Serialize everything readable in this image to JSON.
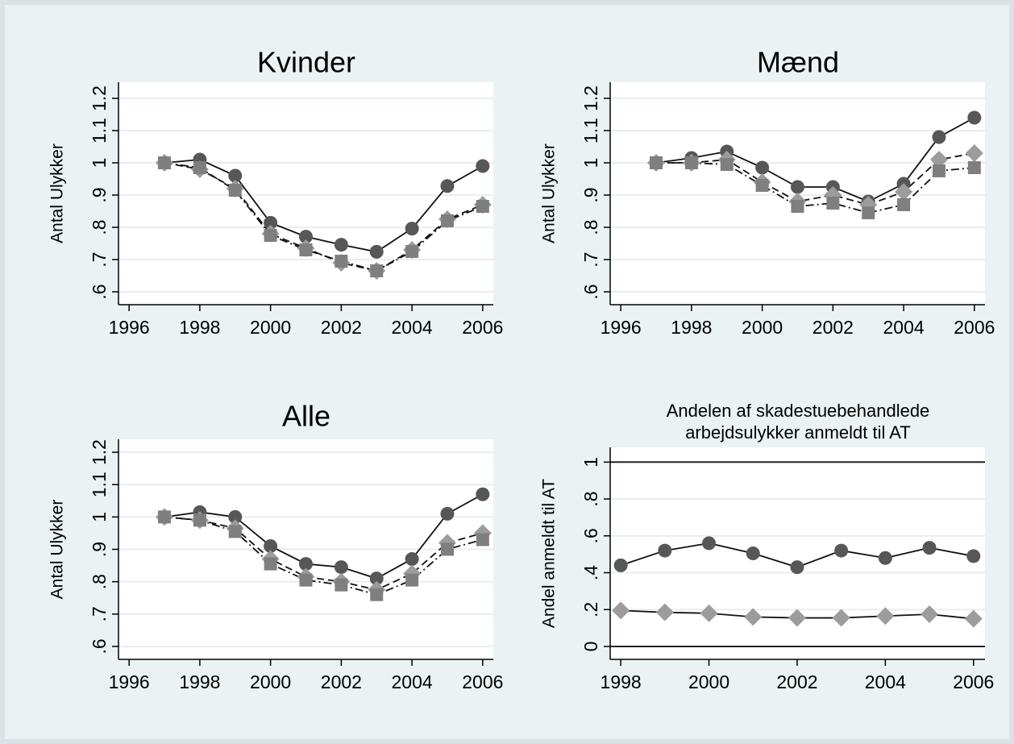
{
  "chart_data": [
    {
      "type": "line",
      "title": "Kvinder",
      "y_label": "Antal Ulykker",
      "x": [
        1997,
        1998,
        1999,
        2000,
        2001,
        2002,
        2003,
        2004,
        2005,
        2006
      ],
      "xlim": [
        1995.7,
        2006.3
      ],
      "xticks": [
        1996,
        1998,
        2000,
        2002,
        2004,
        2006
      ],
      "ylim": [
        0.56,
        1.25
      ],
      "yticks": [
        {
          "value": 0.6,
          "label": ".6"
        },
        {
          "value": 0.7,
          "label": ".7"
        },
        {
          "value": 0.8,
          "label": ".8"
        },
        {
          "value": 0.9,
          "label": ".9"
        },
        1,
        1.1,
        1.2
      ],
      "grid": true,
      "series": [
        {
          "color": "#575757",
          "marker": "circle",
          "line_style": "solid",
          "values": [
            1.0,
            1.01,
            0.96,
            0.814,
            0.771,
            0.746,
            0.724,
            0.796,
            0.928,
            0.99
          ]
        },
        {
          "color": "#9c9c9c",
          "marker": "diamond",
          "line_style": "dash",
          "values": [
            1.0,
            0.98,
            0.92,
            0.78,
            0.735,
            0.69,
            0.665,
            0.73,
            0.825,
            0.87
          ]
        },
        {
          "color": "#7f7f7f",
          "marker": "square",
          "line_style": "dashdot",
          "values": [
            1.0,
            0.985,
            0.915,
            0.775,
            0.73,
            0.695,
            0.665,
            0.725,
            0.82,
            0.865
          ]
        }
      ]
    },
    {
      "type": "line",
      "title": "Mænd",
      "y_label": "Antal Ulykker",
      "x": [
        1997,
        1998,
        1999,
        2000,
        2001,
        2002,
        2003,
        2004,
        2005,
        2006
      ],
      "xlim": [
        1995.7,
        2006.3
      ],
      "xticks": [
        1996,
        1998,
        2000,
        2002,
        2004,
        2006
      ],
      "ylim": [
        0.56,
        1.25
      ],
      "yticks": [
        {
          "value": 0.6,
          "label": ".6"
        },
        {
          "value": 0.7,
          "label": ".7"
        },
        {
          "value": 0.8,
          "label": ".8"
        },
        {
          "value": 0.9,
          "label": ".9"
        },
        1,
        1.1,
        1.2
      ],
      "grid": true,
      "series": [
        {
          "color": "#575757",
          "marker": "circle",
          "line_style": "solid",
          "values": [
            1.0,
            1.015,
            1.035,
            0.985,
            0.925,
            0.925,
            0.88,
            0.935,
            1.08,
            1.14
          ]
        },
        {
          "color": "#9c9c9c",
          "marker": "diamond",
          "line_style": "dash",
          "values": [
            1.0,
            1.0,
            1.01,
            0.94,
            0.88,
            0.9,
            0.87,
            0.91,
            1.01,
            1.03
          ]
        },
        {
          "color": "#7f7f7f",
          "marker": "square",
          "line_style": "dashdot",
          "values": [
            1.0,
            1.0,
            0.995,
            0.93,
            0.865,
            0.875,
            0.845,
            0.87,
            0.975,
            0.985
          ]
        }
      ]
    },
    {
      "type": "line",
      "title": "Alle",
      "y_label": "Antal Ulykker",
      "x": [
        1997,
        1998,
        1999,
        2000,
        2001,
        2002,
        2003,
        2004,
        2005,
        2006
      ],
      "xlim": [
        1995.7,
        2006.3
      ],
      "xticks": [
        1996,
        1998,
        2000,
        2002,
        2004,
        2006
      ],
      "ylim": [
        0.56,
        1.24
      ],
      "yticks": [
        {
          "value": 0.6,
          "label": ".6"
        },
        {
          "value": 0.7,
          "label": ".7"
        },
        {
          "value": 0.8,
          "label": ".8"
        },
        {
          "value": 0.9,
          "label": ".9"
        },
        1,
        1.1,
        1.2
      ],
      "grid": true,
      "series": [
        {
          "color": "#575757",
          "marker": "circle",
          "line_style": "solid",
          "values": [
            1.0,
            1.015,
            1.0,
            0.91,
            0.855,
            0.845,
            0.81,
            0.87,
            1.01,
            1.07
          ]
        },
        {
          "color": "#9c9c9c",
          "marker": "diamond",
          "line_style": "dash",
          "values": [
            1.0,
            0.99,
            0.965,
            0.87,
            0.815,
            0.8,
            0.775,
            0.825,
            0.92,
            0.95
          ]
        },
        {
          "color": "#7f7f7f",
          "marker": "square",
          "line_style": "dashdot",
          "values": [
            1.0,
            0.99,
            0.955,
            0.855,
            0.805,
            0.79,
            0.76,
            0.805,
            0.9,
            0.93
          ]
        }
      ]
    },
    {
      "type": "line",
      "title": [
        "Andelen af skadestuebehandlede",
        "arbejdsulykker anmeldt til AT"
      ],
      "y_label": "Andel anmeldt til AT",
      "x": [
        1998,
        1999,
        2000,
        2001,
        2002,
        2003,
        2004,
        2005,
        2006
      ],
      "xlim": [
        1997.76,
        2006.26
      ],
      "xticks": [
        1998,
        2000,
        2002,
        2004,
        2006
      ],
      "ylim": [
        -0.07,
        1.08
      ],
      "yticks": [
        0,
        {
          "value": 0.2,
          "label": ".2"
        },
        {
          "value": 0.4,
          "label": ".4"
        },
        {
          "value": 0.6,
          "label": ".6"
        },
        {
          "value": 0.8,
          "label": ".8"
        },
        1
      ],
      "grid": true,
      "reference_lines": [
        0,
        1
      ],
      "series": [
        {
          "color": "#575757",
          "marker": "circle",
          "line_style": "solid",
          "values": [
            0.44,
            0.52,
            0.56,
            0.505,
            0.43,
            0.52,
            0.48,
            0.535,
            0.49
          ]
        },
        {
          "color": "#9c9c9c",
          "marker": "diamond",
          "line_style": "solid",
          "values": [
            0.195,
            0.185,
            0.18,
            0.16,
            0.155,
            0.155,
            0.165,
            0.175,
            0.15
          ]
        }
      ]
    }
  ]
}
